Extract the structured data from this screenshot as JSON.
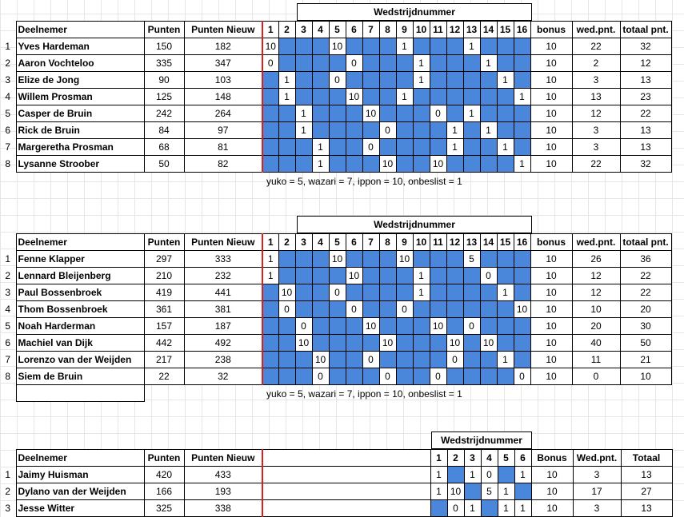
{
  "table1": {
    "group_header": "Wedstrijdnummer",
    "headers": {
      "name": "Deelnemer",
      "points": "Punten",
      "points_new": "Punten Nieuw",
      "matches": [
        "1",
        "2",
        "3",
        "4",
        "5",
        "6",
        "7",
        "8",
        "9",
        "10",
        "11",
        "12",
        "13",
        "14",
        "15",
        "16"
      ],
      "bonus": "bonus",
      "match_points": "wed.pnt.",
      "total": "totaal pnt."
    },
    "rows": [
      {
        "idx": "1",
        "name": "Yves Hardeman",
        "points": "150",
        "points_new": "182",
        "cells": [
          "10",
          "b",
          "b",
          "b",
          "10",
          "b",
          "b",
          "b",
          "1",
          "b",
          "b",
          "b",
          "1",
          "b",
          "b",
          "b"
        ],
        "bonus": "10",
        "match_points": "22",
        "total": "32"
      },
      {
        "idx": "2",
        "name": "Aaron Vochteloo",
        "points": "335",
        "points_new": "347",
        "cells": [
          "0",
          "b",
          "b",
          "b",
          "b",
          "0",
          "b",
          "b",
          "b",
          "1",
          "b",
          "b",
          "b",
          "1",
          "b",
          "b"
        ],
        "bonus": "10",
        "match_points": "2",
        "total": "12"
      },
      {
        "idx": "3",
        "name": "Elize de Jong",
        "points": "90",
        "points_new": "103",
        "cells": [
          "b",
          "1",
          "b",
          "b",
          "0",
          "b",
          "b",
          "b",
          "b",
          "1",
          "b",
          "b",
          "b",
          "b",
          "1",
          "b"
        ],
        "bonus": "10",
        "match_points": "3",
        "total": "13"
      },
      {
        "idx": "4",
        "name": "Willem Prosman",
        "points": "125",
        "points_new": "148",
        "cells": [
          "b",
          "1",
          "b",
          "b",
          "b",
          "10",
          "b",
          "b",
          "1",
          "b",
          "b",
          "b",
          "b",
          "b",
          "b",
          "1"
        ],
        "bonus": "10",
        "match_points": "13",
        "total": "23"
      },
      {
        "idx": "5",
        "name": "Casper de Bruin",
        "points": "242",
        "points_new": "264",
        "cells": [
          "b",
          "b",
          "1",
          "b",
          "b",
          "b",
          "10",
          "b",
          "b",
          "b",
          "0",
          "b",
          "1",
          "b",
          "b",
          "b"
        ],
        "bonus": "10",
        "match_points": "12",
        "total": "22"
      },
      {
        "idx": "6",
        "name": "Rick de Bruin",
        "points": "84",
        "points_new": "97",
        "cells": [
          "b",
          "b",
          "1",
          "b",
          "b",
          "b",
          "b",
          "0",
          "b",
          "b",
          "b",
          "1",
          "b",
          "1",
          "b",
          "b"
        ],
        "bonus": "10",
        "match_points": "3",
        "total": "13"
      },
      {
        "idx": "7",
        "name": "Margeretha Prosman",
        "points": "68",
        "points_new": "81",
        "cells": [
          "b",
          "b",
          "b",
          "1",
          "b",
          "b",
          "0",
          "b",
          "b",
          "b",
          "b",
          "1",
          "b",
          "b",
          "1",
          "b"
        ],
        "bonus": "10",
        "match_points": "3",
        "total": "13"
      },
      {
        "idx": "8",
        "name": "Lysanne Stroober",
        "points": "50",
        "points_new": "82",
        "cells": [
          "b",
          "b",
          "b",
          "1",
          "b",
          "b",
          "b",
          "10",
          "b",
          "b",
          "10",
          "b",
          "b",
          "b",
          "b",
          "1"
        ],
        "bonus": "10",
        "match_points": "22",
        "total": "32"
      }
    ],
    "note": "yuko = 5, wazari = 7, ippon = 10, onbeslist = 1"
  },
  "table2": {
    "group_header": "Wedstrijdnummer",
    "headers": {
      "name": "Deelnemer",
      "points": "Punten",
      "points_new": "Punten Nieuw",
      "matches": [
        "1",
        "2",
        "3",
        "4",
        "5",
        "6",
        "7",
        "8",
        "9",
        "10",
        "11",
        "12",
        "13",
        "14",
        "15",
        "16"
      ],
      "bonus": "bonus",
      "match_points": "wed.pnt.",
      "total": "totaal pnt."
    },
    "rows": [
      {
        "idx": "1",
        "name": "Fenne Klapper",
        "points": "297",
        "points_new": "333",
        "cells": [
          "1",
          "b",
          "b",
          "b",
          "10",
          "b",
          "b",
          "b",
          "10",
          "b",
          "b",
          "b",
          "5",
          "b",
          "b",
          "b"
        ],
        "bonus": "10",
        "match_points": "26",
        "total": "36"
      },
      {
        "idx": "2",
        "name": "Lennard Bleijenberg",
        "points": "210",
        "points_new": "232",
        "cells": [
          "1",
          "b",
          "b",
          "b",
          "b",
          "10",
          "b",
          "b",
          "b",
          "1",
          "b",
          "b",
          "b",
          "0",
          "b",
          "b"
        ],
        "bonus": "10",
        "match_points": "12",
        "total": "22"
      },
      {
        "idx": "3",
        "name": "Paul Bossenbroek",
        "points": "419",
        "points_new": "441",
        "cells": [
          "b",
          "10",
          "b",
          "b",
          "0",
          "b",
          "b",
          "b",
          "b",
          "1",
          "b",
          "b",
          "b",
          "b",
          "1",
          "b"
        ],
        "bonus": "10",
        "match_points": "12",
        "total": "22"
      },
      {
        "idx": "4",
        "name": "Thom Bossenbroek",
        "points": "361",
        "points_new": "381",
        "cells": [
          "b",
          "0",
          "b",
          "b",
          "b",
          "0",
          "b",
          "b",
          "0",
          "b",
          "b",
          "b",
          "b",
          "b",
          "b",
          "10"
        ],
        "bonus": "10",
        "match_points": "10",
        "total": "20"
      },
      {
        "idx": "5",
        "name": "Noah Harderman",
        "points": "157",
        "points_new": "187",
        "cells": [
          "b",
          "b",
          "0",
          "b",
          "b",
          "b",
          "10",
          "b",
          "b",
          "b",
          "10",
          "b",
          "0",
          "b",
          "b",
          "b"
        ],
        "bonus": "10",
        "match_points": "20",
        "total": "30"
      },
      {
        "idx": "6",
        "name": "Machiel van Dijk",
        "points": "442",
        "points_new": "492",
        "cells": [
          "b",
          "b",
          "10",
          "b",
          "b",
          "b",
          "b",
          "10",
          "b",
          "b",
          "b",
          "10",
          "b",
          "10",
          "b",
          "b"
        ],
        "bonus": "10",
        "match_points": "40",
        "total": "50"
      },
      {
        "idx": "7",
        "name": "Lorenzo van der Weijden",
        "points": "217",
        "points_new": "238",
        "cells": [
          "b",
          "b",
          "b",
          "10",
          "b",
          "b",
          "0",
          "b",
          "b",
          "b",
          "b",
          "0",
          "b",
          "b",
          "1",
          "b"
        ],
        "bonus": "10",
        "match_points": "11",
        "total": "21"
      },
      {
        "idx": "8",
        "name": "Siem de Bruin",
        "points": "22",
        "points_new": "32",
        "cells": [
          "b",
          "b",
          "b",
          "0",
          "b",
          "b",
          "b",
          "0",
          "b",
          "b",
          "0",
          "b",
          "b",
          "b",
          "b",
          "0"
        ],
        "bonus": "10",
        "match_points": "0",
        "total": "10"
      }
    ],
    "note": "yuko = 5, wazari = 7, ippon = 10, onbeslist = 1"
  },
  "table3": {
    "group_header": "Wedstrijdnummer",
    "headers": {
      "name": "Deelnemer",
      "points": "Punten",
      "points_new": "Punten Nieuw",
      "matches": [
        "1",
        "2",
        "3",
        "4",
        "5",
        "6"
      ],
      "bonus": "Bonus",
      "match_points": "Wed.pnt.",
      "total": "Totaal"
    },
    "rows": [
      {
        "idx": "1",
        "name": "Jaimy Huisman",
        "points": "420",
        "points_new": "433",
        "cells": [
          "1",
          "b",
          "1",
          "0",
          "b",
          "1"
        ],
        "bonus": "10",
        "match_points": "3",
        "total": "13"
      },
      {
        "idx": "2",
        "name": "Dylano van der Weijden",
        "points": "166",
        "points_new": "193",
        "cells": [
          "1",
          "10",
          "b",
          "5",
          "1",
          "b"
        ],
        "bonus": "10",
        "match_points": "17",
        "total": "27"
      },
      {
        "idx": "3",
        "name": "Jesse Witter",
        "points": "325",
        "points_new": "338",
        "cells": [
          "b",
          "0",
          "1",
          "b",
          "1",
          "1"
        ],
        "bonus": "10",
        "match_points": "3",
        "total": "13"
      }
    ]
  },
  "colors": {
    "blue_cell": "#4a86d9",
    "red_border": "#d62020"
  }
}
